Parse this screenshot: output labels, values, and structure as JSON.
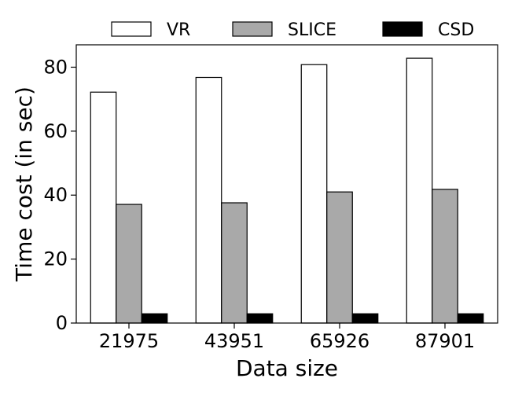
{
  "chart_data": {
    "type": "bar",
    "title": "",
    "xlabel": "Data size",
    "ylabel": "Time cost (in sec)",
    "categories": [
      "21975",
      "43951",
      "65926",
      "87901"
    ],
    "ylim": [
      0,
      87
    ],
    "yticks": [
      "0",
      "20",
      "40",
      "60",
      "80"
    ],
    "legend_position": "top",
    "grid": false,
    "series": [
      {
        "name": "VR",
        "color": "#ffffff",
        "values": [
          72.2,
          76.8,
          80.8,
          82.8
        ]
      },
      {
        "name": "SLICE",
        "color": "#a9a9a9",
        "values": [
          37.1,
          37.6,
          41.0,
          41.8
        ]
      },
      {
        "name": "CSD",
        "color": "#000000",
        "values": [
          2.9,
          2.9,
          2.9,
          2.9
        ]
      }
    ]
  }
}
